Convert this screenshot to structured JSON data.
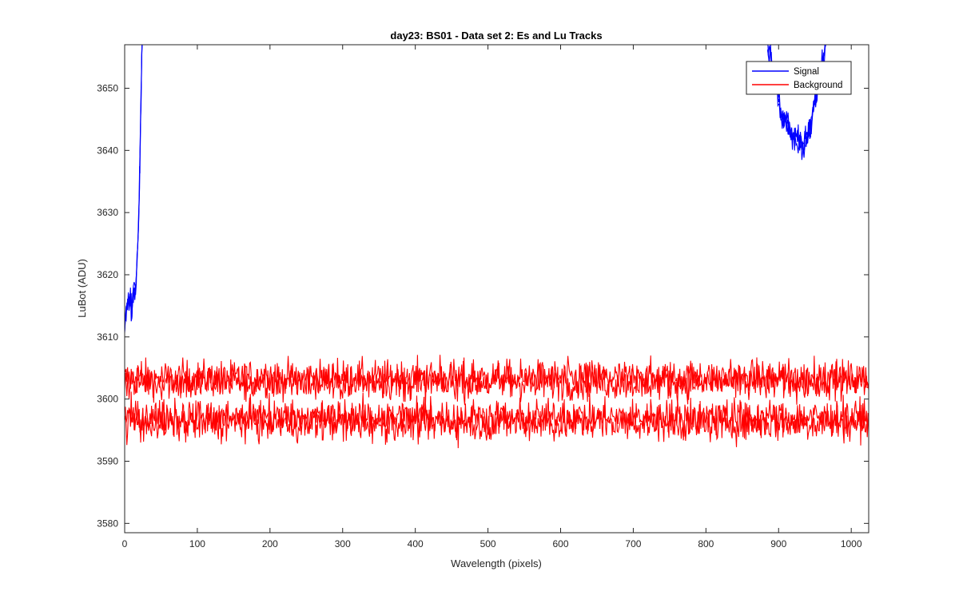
{
  "chart_data": {
    "type": "line",
    "title": "day23: BS01 - Data set 2: Es and Lu Tracks",
    "xlabel": "Wavelength (pixels)",
    "ylabel": "LuBot (ADU)",
    "xlim": [
      0,
      1024
    ],
    "ylim": [
      3578.5,
      3657
    ],
    "xticks": [
      0,
      100,
      200,
      300,
      400,
      500,
      600,
      700,
      800,
      900,
      1000
    ],
    "yticks": [
      3580,
      3590,
      3600,
      3610,
      3620,
      3630,
      3640,
      3650
    ],
    "grid": false,
    "legend_position": "top-right",
    "series": [
      {
        "name": "Signal",
        "color": "#0000ff",
        "segments": [
          {
            "x": [
              0,
              2,
              4,
              6,
              8,
              10,
              12,
              14,
              16,
              18,
              20,
              21,
              22,
              23,
              24
            ],
            "y": [
              3611,
              3614,
              3616,
              3615,
              3617,
              3614,
              3618,
              3617,
              3620,
              3625,
              3632,
              3638,
              3645,
              3652,
              3657
            ]
          },
          {
            "x": [
              885,
              890,
              895,
              900,
              905,
              910,
              915,
              920,
              925,
              930,
              935,
              940,
              945,
              950,
              955,
              960,
              965
            ],
            "y": [
              3657,
              3654,
              3651,
              3648,
              3645,
              3645,
              3643,
              3642,
              3642,
              3641,
              3641,
              3643,
              3645,
              3648,
              3651,
              3654,
              3657
            ]
          }
        ]
      },
      {
        "name": "Background",
        "color": "#ff0000",
        "traces": [
          {
            "mean": 3603.3,
            "noise": 1.5
          },
          {
            "mean": 3602.8,
            "noise": 1.5
          },
          {
            "mean": 3597.0,
            "noise": 1.5
          },
          {
            "mean": 3596.3,
            "noise": 1.6
          }
        ]
      }
    ]
  }
}
